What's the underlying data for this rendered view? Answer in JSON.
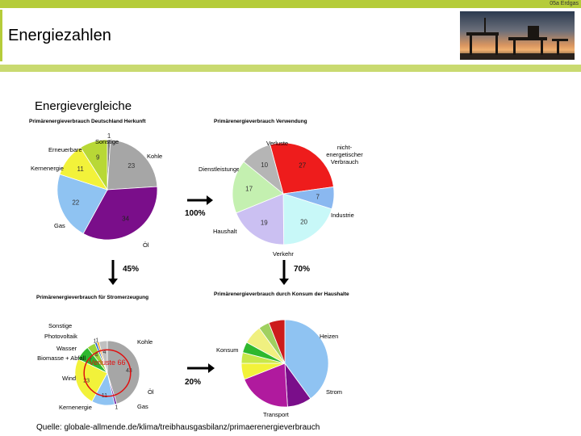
{
  "corner_label": "05a Erdgas",
  "title": "Energiezahlen",
  "subtitle": "Energievergleiche",
  "source": "Quelle: globale-allmende.de/klima/treibhausgasbilanz/primaerenergieverbrauch",
  "arrows": {
    "right_top": "100%",
    "down_left": "45%",
    "down_right": "70%",
    "right_bottom": "20%"
  },
  "chart_data": [
    {
      "type": "pie",
      "title": "Primärenergieverbrauch Deutschland Herkunft",
      "slices": [
        {
          "label": "Sonstige",
          "value": 1,
          "color": "#7a7a7a"
        },
        {
          "label": "Kohle",
          "value": 23,
          "color": "#a6a6a6"
        },
        {
          "label": "Öl",
          "value": 34,
          "color": "#7a0e8a"
        },
        {
          "label": "Gas",
          "value": 22,
          "color": "#8fc3f2"
        },
        {
          "label": "Kernenergie",
          "value": 11,
          "color": "#f2f23a"
        },
        {
          "label": "Erneuerbare",
          "value": 9,
          "color": "#b8d836"
        }
      ]
    },
    {
      "type": "pie",
      "title": "Primärenergieverbrauch Verwendung",
      "slices": [
        {
          "label": "Verluste",
          "value": 27,
          "color": "#ee1c1c"
        },
        {
          "label": "nicht-energetischer Verbrauch",
          "value": 7,
          "color": "#8ab8f0"
        },
        {
          "label": "Industrie",
          "value": 20,
          "color": "#c8f8f8"
        },
        {
          "label": "Verkehr",
          "value": 19,
          "color": "#cbc0f2"
        },
        {
          "label": "Haushalt",
          "value": 17,
          "color": "#c4f0b0"
        },
        {
          "label": "Dienstleistungen",
          "value": 10,
          "color": "#b5b5b5"
        }
      ]
    },
    {
      "type": "pie",
      "title": "Primärenergieverbrauch für Stromerzeugung",
      "center_label": "Verluste 66",
      "slices": [
        {
          "label": "Kohle",
          "value": 43,
          "color": "#a6a6a6"
        },
        {
          "label": "Öl",
          "value": 1,
          "color": "#6a1b9a"
        },
        {
          "label": "Gas",
          "value": 11,
          "color": "#8fc3f2"
        },
        {
          "label": "Kernenergie",
          "value": 23,
          "color": "#f2f23a"
        },
        {
          "label": "Wind",
          "value": 7,
          "color": "#2eb82e"
        },
        {
          "label": "Biomasse + Abfall",
          "value": 4,
          "color": "#9ad43a"
        },
        {
          "label": "Wasser",
          "value": 1,
          "color": "#1f5fc8"
        },
        {
          "label": "Photovoltaik",
          "value": 1,
          "color": "#f0a020"
        },
        {
          "label": "Sonstige",
          "value": 4,
          "color": "#c0c0c0"
        }
      ]
    },
    {
      "type": "pie",
      "title": "Primärenergieverbrauch durch Konsum der Haushalte",
      "slices": [
        {
          "label": "Heizen",
          "value": 40,
          "color": "#8fc3f2"
        },
        {
          "label": "Strom",
          "value": 9,
          "color": "#7a0e8a"
        },
        {
          "label": "Transport",
          "value": 20,
          "color": "#b01a9e"
        },
        {
          "label": "",
          "value": 6,
          "color": "#f2f23a"
        },
        {
          "label": "",
          "value": 4,
          "color": "#c8e84a"
        },
        {
          "label": "",
          "value": 4,
          "color": "#2eb82e"
        },
        {
          "label": "Konsum",
          "value": 7,
          "color": "#f0f080"
        },
        {
          "label": "",
          "value": 4,
          "color": "#a0d060"
        },
        {
          "label": "",
          "value": 6,
          "color": "#cc1c1c"
        }
      ]
    }
  ]
}
